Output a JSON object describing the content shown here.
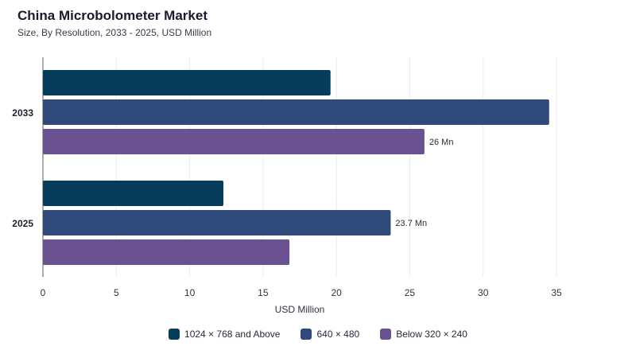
{
  "chart_data": {
    "type": "bar",
    "orientation": "horizontal",
    "title": "China Microbolometer Market",
    "subtitle": "Size, By Resolution, 2033 - 2025, USD Million",
    "xlabel": "USD Million",
    "ylabel": "",
    "xlim": [
      0,
      35
    ],
    "xticks": [
      0,
      5,
      10,
      15,
      20,
      25,
      30,
      35
    ],
    "grid": true,
    "legend_position": "bottom",
    "categories": [
      "2033",
      "2025"
    ],
    "series": [
      {
        "name": "1024 × 768 and Above",
        "color": "#053d5a",
        "values": [
          19.6,
          12.3
        ],
        "labels": [
          "",
          ""
        ]
      },
      {
        "name": "640 × 480",
        "color": "#2f4a7a",
        "values": [
          34.5,
          23.7
        ],
        "labels": [
          "",
          "23.7 Mn"
        ]
      },
      {
        "name": "Below 320 × 240",
        "color": "#6a5191",
        "values": [
          26.0,
          16.8
        ],
        "labels": [
          "26 Mn",
          ""
        ]
      }
    ]
  }
}
